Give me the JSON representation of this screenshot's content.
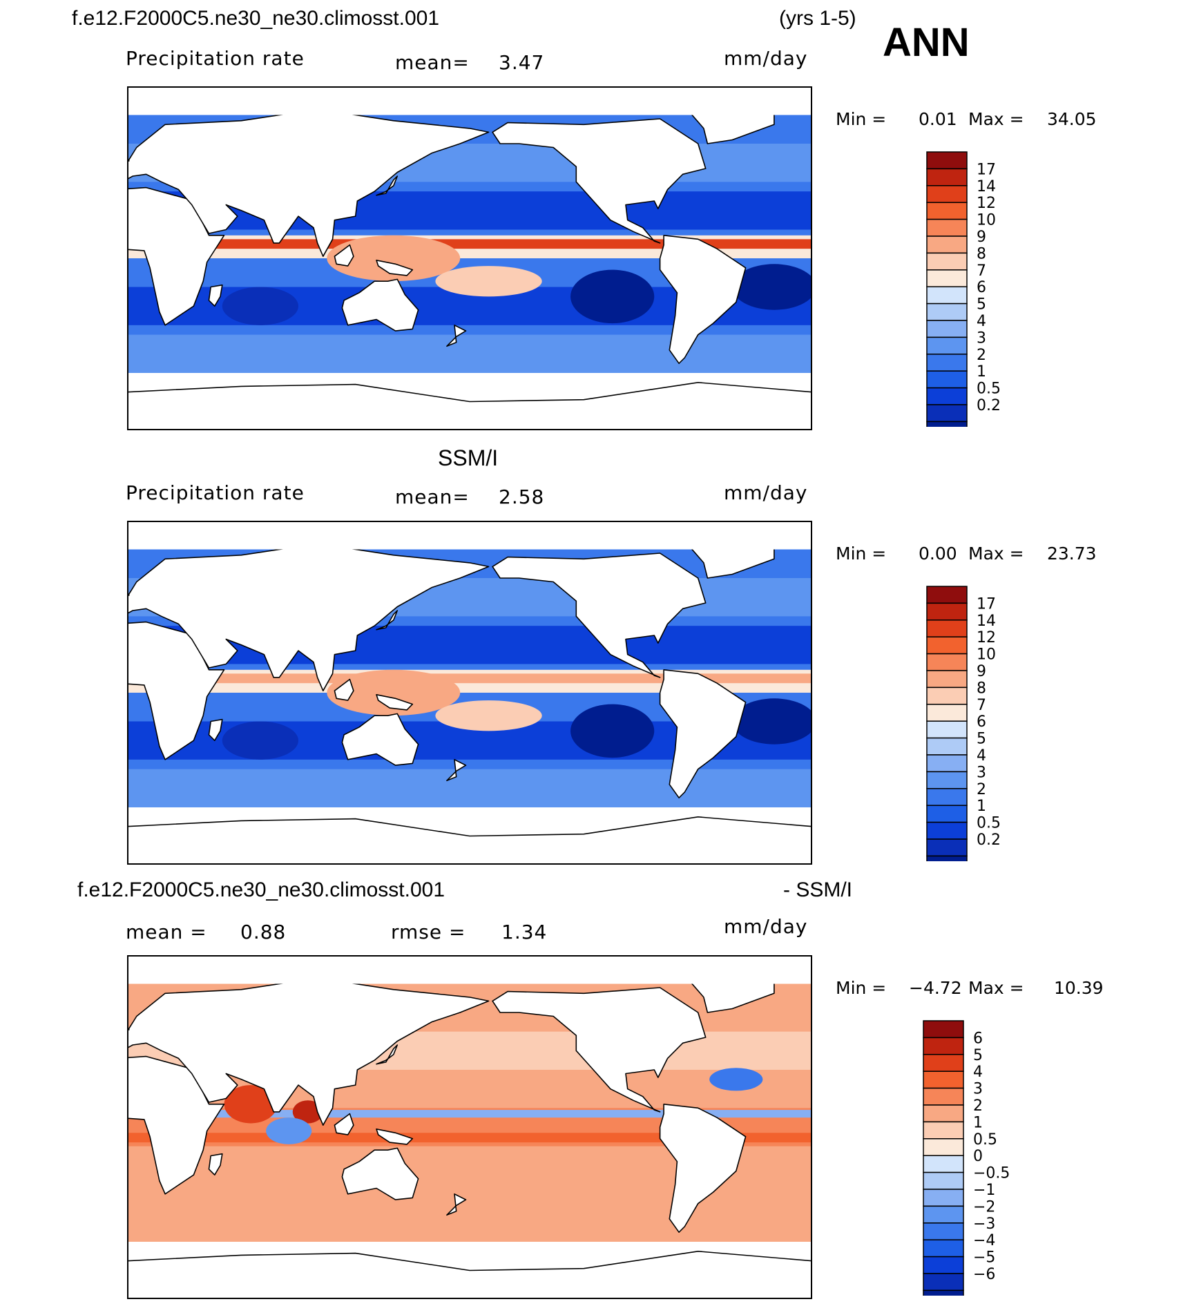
{
  "figure": {
    "case_name": "f.e12.F2000C5.ne30_ne30.climosst.001",
    "years": "(yrs 1-5)",
    "season": "ANN"
  },
  "colors": {
    "precip_scale": [
      "#001d8f",
      "#0a2fb8",
      "#0c3fd8",
      "#1e5fe6",
      "#3a78ec",
      "#5d95f0",
      "#87aff3",
      "#aecbf6",
      "#d2e4fb",
      "#fbe9da",
      "#fbcdb4",
      "#f8a883",
      "#f68558",
      "#f2622e",
      "#e0401a",
      "#bf2410",
      "#8f0d0d"
    ],
    "diff_scale": [
      "#001d8f",
      "#0a2fb8",
      "#0c3fd8",
      "#1e5fe6",
      "#3a78ec",
      "#5d95f0",
      "#87aff3",
      "#aecbf6",
      "#d2e4fb",
      "#fbe9da",
      "#fbcdb4",
      "#f8a883",
      "#f68558",
      "#f2622e",
      "#e0401a",
      "#bf2410",
      "#8f0d0d"
    ],
    "land": "#ffffff",
    "coast": "#000000"
  },
  "chart_data": [
    {
      "type": "heatmap",
      "map_id": "model",
      "title": "",
      "field": "Precipitation rate",
      "mean_label": "mean=",
      "mean": "3.47",
      "units": "mm/day",
      "min_label": "Min =",
      "min": "0.01",
      "max_label": "Max =",
      "max": "34.05",
      "colorbar_levels": [
        "17",
        "14",
        "12",
        "10",
        "9",
        "8",
        "7",
        "6",
        "5",
        "4",
        "3",
        "2",
        "1",
        "0.5",
        "0.2"
      ],
      "xlim": [
        0,
        360
      ],
      "ylim": [
        -90,
        90
      ]
    },
    {
      "type": "heatmap",
      "map_id": "obs",
      "title": "SSM/I",
      "field": "Precipitation rate",
      "mean_label": "mean=",
      "mean": "2.58",
      "units": "mm/day",
      "min_label": "Min =",
      "min": "0.00",
      "max_label": "Max =",
      "max": "23.73",
      "colorbar_levels": [
        "17",
        "14",
        "12",
        "10",
        "9",
        "8",
        "7",
        "6",
        "5",
        "4",
        "3",
        "2",
        "1",
        "0.5",
        "0.2"
      ],
      "xlim": [
        0,
        360
      ],
      "ylim": [
        -90,
        90
      ]
    },
    {
      "type": "heatmap",
      "map_id": "diff",
      "title_left": "f.e12.F2000C5.ne30_ne30.climosst.001",
      "title_right": "- SSM/I",
      "mean_label": "mean =",
      "mean": "0.88",
      "rmse_label": "rmse =",
      "rmse": "1.34",
      "units": "mm/day",
      "min_label": "Min =",
      "min": "−4.72",
      "max_label": "Max =",
      "max": "10.39",
      "colorbar_levels": [
        "6",
        "5",
        "4",
        "3",
        "2",
        "1",
        "0.5",
        "0",
        "−0.5",
        "−1",
        "−2",
        "−3",
        "−4",
        "−5",
        "−6"
      ],
      "xlim": [
        0,
        360
      ],
      "ylim": [
        -90,
        90
      ]
    }
  ]
}
